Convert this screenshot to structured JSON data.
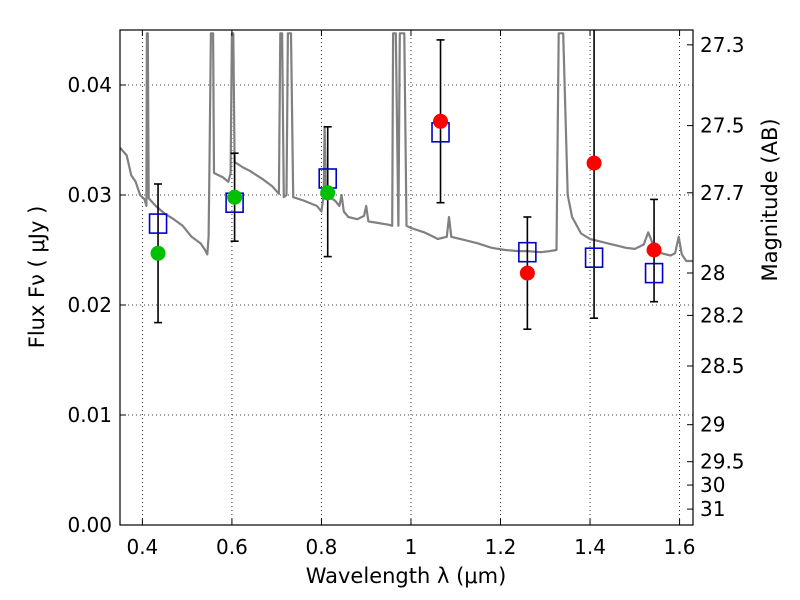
{
  "chart_data": {
    "type": "scatter",
    "xlabel": "Wavelength  λ (μm)",
    "ylabel": "Flux  Fν  ( μJy )",
    "y2label": "Magnitude (AB)",
    "xlim": [
      0.35,
      1.63
    ],
    "ylim": [
      0.0,
      0.045
    ],
    "grid": true,
    "x_ticks": [
      0.4,
      0.6,
      0.8,
      1.0,
      1.2,
      1.4,
      1.6
    ],
    "x_tick_labels": [
      "0.4",
      "0.6",
      "0.8",
      "1",
      "1.2",
      "1.4",
      "1.6"
    ],
    "y_ticks": [
      0.0,
      0.01,
      0.02,
      0.03,
      0.04
    ],
    "y_tick_labels": [
      "0.00",
      "0.01",
      "0.02",
      "0.03",
      "0.04"
    ],
    "mag_ticks": [
      {
        "label": "27.3",
        "value": 27.3
      },
      {
        "label": "27.5",
        "value": 27.5
      },
      {
        "label": "27.7",
        "value": 27.7
      },
      {
        "label": "28",
        "value": 28.0
      },
      {
        "label": "28.2",
        "value": 28.2
      },
      {
        "label": "28.5",
        "value": 28.5
      },
      {
        "label": "29",
        "value": 29.0
      },
      {
        "label": "29.5",
        "value": 29.5
      },
      {
        "label": "30",
        "value": 30.0
      },
      {
        "label": "31",
        "value": 31.0
      }
    ],
    "observed_points": [
      {
        "x": 0.435,
        "y": 0.0247,
        "yerr_low": 0.0184,
        "yerr_high": 0.031,
        "color": "#00c000"
      },
      {
        "x": 0.606,
        "y": 0.0298,
        "yerr_low": 0.0258,
        "yerr_high": 0.0338,
        "color": "#00c000"
      },
      {
        "x": 0.814,
        "y": 0.0302,
        "yerr_low": 0.0244,
        "yerr_high": 0.0362,
        "color": "#00c000"
      },
      {
        "x": 1.066,
        "y": 0.0367,
        "yerr_low": 0.0293,
        "yerr_high": 0.0441,
        "color": "#ff0000"
      },
      {
        "x": 1.26,
        "y": 0.0229,
        "yerr_low": 0.0178,
        "yerr_high": 0.028,
        "color": "#ff0000"
      },
      {
        "x": 1.409,
        "y": 0.0329,
        "yerr_low": 0.0188,
        "yerr_high": 0.047,
        "color": "#ff0000"
      },
      {
        "x": 1.543,
        "y": 0.025,
        "yerr_low": 0.0203,
        "yerr_high": 0.0296,
        "color": "#ff0000"
      }
    ],
    "model_points": [
      {
        "x": 0.435,
        "y": 0.0274
      },
      {
        "x": 0.606,
        "y": 0.0293
      },
      {
        "x": 0.814,
        "y": 0.0315
      },
      {
        "x": 1.066,
        "y": 0.0357
      },
      {
        "x": 1.26,
        "y": 0.0248
      },
      {
        "x": 1.409,
        "y": 0.0243
      },
      {
        "x": 1.543,
        "y": 0.0229
      }
    ],
    "model_color": "#0000cc",
    "template_color": "#808080",
    "template_spectrum": [
      [
        0.35,
        0.0343
      ],
      [
        0.365,
        0.0336
      ],
      [
        0.375,
        0.0318
      ],
      [
        0.385,
        0.0312
      ],
      [
        0.395,
        0.03
      ],
      [
        0.405,
        0.0296
      ],
      [
        0.409,
        0.029
      ],
      [
        0.41,
        0.0447
      ],
      [
        0.412,
        0.0447
      ],
      [
        0.414,
        0.0297
      ],
      [
        0.43,
        0.029
      ],
      [
        0.45,
        0.0283
      ],
      [
        0.47,
        0.0278
      ],
      [
        0.49,
        0.0272
      ],
      [
        0.51,
        0.0262
      ],
      [
        0.53,
        0.0256
      ],
      [
        0.54,
        0.025
      ],
      [
        0.545,
        0.0246
      ],
      [
        0.548,
        0.0262
      ],
      [
        0.55,
        0.033
      ],
      [
        0.553,
        0.0447
      ],
      [
        0.558,
        0.0447
      ],
      [
        0.56,
        0.032
      ],
      [
        0.58,
        0.0316
      ],
      [
        0.592,
        0.0312
      ],
      [
        0.597,
        0.032
      ],
      [
        0.6,
        0.0447
      ],
      [
        0.603,
        0.0447
      ],
      [
        0.606,
        0.033
      ],
      [
        0.625,
        0.0325
      ],
      [
        0.64,
        0.0322
      ],
      [
        0.655,
        0.0318
      ],
      [
        0.67,
        0.0314
      ],
      [
        0.69,
        0.0308
      ],
      [
        0.705,
        0.0301
      ],
      [
        0.708,
        0.0447
      ],
      [
        0.712,
        0.0447
      ],
      [
        0.716,
        0.0298
      ],
      [
        0.722,
        0.03
      ],
      [
        0.725,
        0.0447
      ],
      [
        0.732,
        0.0447
      ],
      [
        0.737,
        0.0298
      ],
      [
        0.76,
        0.0295
      ],
      [
        0.79,
        0.029
      ],
      [
        0.8,
        0.0285
      ],
      [
        0.805,
        0.03
      ],
      [
        0.807,
        0.0362
      ],
      [
        0.81,
        0.03
      ],
      [
        0.83,
        0.0295
      ],
      [
        0.84,
        0.029
      ],
      [
        0.845,
        0.03
      ],
      [
        0.85,
        0.0285
      ],
      [
        0.86,
        0.028
      ],
      [
        0.88,
        0.0278
      ],
      [
        0.895,
        0.0281
      ],
      [
        0.9,
        0.029
      ],
      [
        0.905,
        0.0276
      ],
      [
        0.92,
        0.0275
      ],
      [
        0.95,
        0.0273
      ],
      [
        0.958,
        0.0272
      ],
      [
        0.96,
        0.0447
      ],
      [
        0.966,
        0.0447
      ],
      [
        0.972,
        0.0272
      ],
      [
        0.975,
        0.0447
      ],
      [
        0.985,
        0.0447
      ],
      [
        0.99,
        0.0272
      ],
      [
        1.0,
        0.027
      ],
      [
        1.03,
        0.0266
      ],
      [
        1.05,
        0.0262
      ],
      [
        1.06,
        0.026
      ],
      [
        1.08,
        0.0262
      ],
      [
        1.085,
        0.028
      ],
      [
        1.09,
        0.0262
      ],
      [
        1.12,
        0.0259
      ],
      [
        1.15,
        0.0256
      ],
      [
        1.18,
        0.0252
      ],
      [
        1.21,
        0.025
      ],
      [
        1.24,
        0.0249
      ],
      [
        1.26,
        0.0249
      ],
      [
        1.29,
        0.0248
      ],
      [
        1.31,
        0.0249
      ],
      [
        1.325,
        0.025
      ],
      [
        1.33,
        0.0447
      ],
      [
        1.34,
        0.0447
      ],
      [
        1.35,
        0.03
      ],
      [
        1.36,
        0.028
      ],
      [
        1.38,
        0.0265
      ],
      [
        1.4,
        0.026
      ],
      [
        1.42,
        0.0258
      ],
      [
        1.44,
        0.0256
      ],
      [
        1.46,
        0.0254
      ],
      [
        1.48,
        0.0252
      ],
      [
        1.5,
        0.0251
      ],
      [
        1.52,
        0.0255
      ],
      [
        1.53,
        0.0266
      ],
      [
        1.536,
        0.026
      ],
      [
        1.545,
        0.025
      ],
      [
        1.56,
        0.0247
      ],
      [
        1.58,
        0.0245
      ],
      [
        1.59,
        0.0247
      ],
      [
        1.598,
        0.0262
      ],
      [
        1.605,
        0.0246
      ],
      [
        1.615,
        0.024
      ],
      [
        1.63,
        0.024
      ]
    ]
  }
}
